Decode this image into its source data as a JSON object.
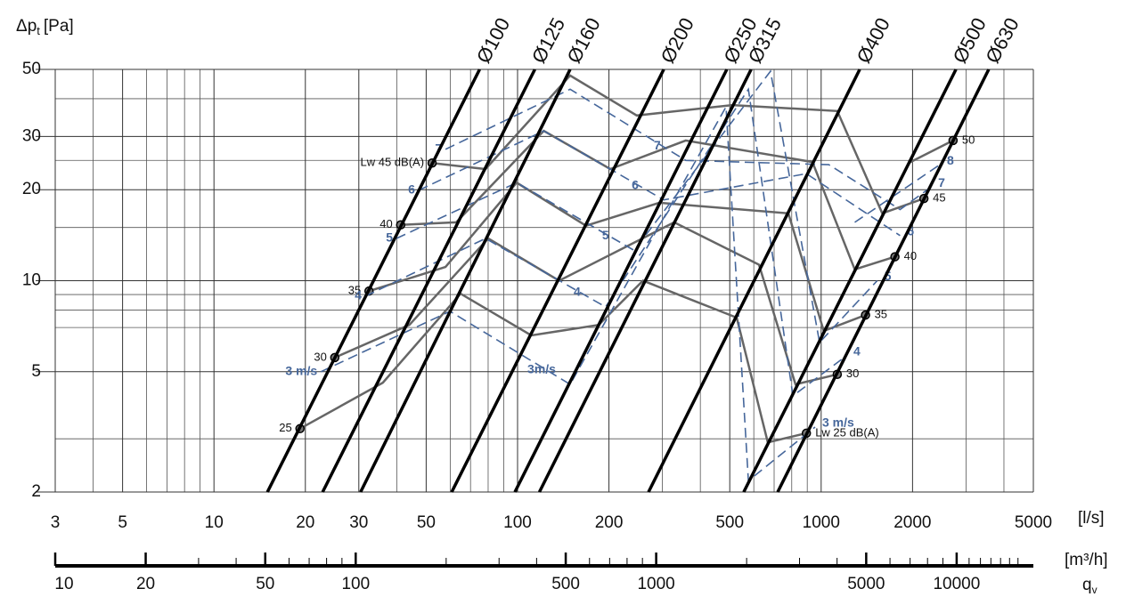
{
  "chart_data": {
    "type": "line",
    "y_label": {
      "main": "Δp",
      "sub": "t",
      "unit": "[Pa]"
    },
    "x_unit": "[l/s]",
    "log": true,
    "grid": true,
    "xlim": [
      3,
      5000
    ],
    "ylim": [
      2,
      50
    ],
    "xticks": [
      3,
      5,
      10,
      20,
      30,
      50,
      100,
      200,
      500,
      1000,
      2000,
      5000
    ],
    "minor_xticks": [
      4,
      6,
      7,
      8,
      9,
      40,
      60,
      70,
      80,
      90,
      300,
      400,
      600,
      700,
      800,
      900,
      3000,
      4000
    ],
    "yticks": [
      2,
      5,
      10,
      20,
      30,
      50
    ],
    "minor_yticks": [
      3,
      7,
      8,
      9,
      15,
      25,
      40
    ],
    "x2": {
      "unit": "[m³/h]",
      "label": {
        "main": "q",
        "sub": "v"
      },
      "lim": [
        10,
        18000
      ],
      "ticks": [
        10,
        20,
        50,
        100,
        500,
        1000,
        5000,
        10000
      ],
      "minor_ticks": [
        30,
        40,
        60,
        70,
        80,
        90,
        200,
        300,
        400,
        600,
        700,
        800,
        900,
        2000,
        3000,
        4000,
        6000,
        7000,
        8000,
        9000,
        11000,
        12000,
        13000,
        14000,
        15000,
        16000
      ]
    },
    "series": [
      {
        "kind": "duct",
        "name": "Ø100",
        "color": "#000000",
        "x": [
          15,
          75
        ],
        "values": [
          2,
          50
        ]
      },
      {
        "kind": "duct",
        "name": "Ø125",
        "color": "#000000",
        "x": [
          22.8,
          114
        ],
        "values": [
          2,
          50
        ]
      },
      {
        "kind": "duct",
        "name": "Ø160",
        "color": "#000000",
        "x": [
          30.4,
          149
        ],
        "values": [
          2,
          50
        ]
      },
      {
        "kind": "duct",
        "name": "Ø200",
        "color": "#000000",
        "x": [
          60.7,
          303
        ],
        "values": [
          2,
          50
        ]
      },
      {
        "kind": "duct",
        "name": "Ø250",
        "color": "#000000",
        "x": [
          98,
          489
        ],
        "values": [
          2,
          50
        ]
      },
      {
        "kind": "duct",
        "name": "Ø315",
        "color": "#000000",
        "x": [
          118,
          588
        ],
        "values": [
          2,
          50
        ]
      },
      {
        "kind": "duct",
        "name": "Ø400",
        "color": "#000000",
        "x": [
          270,
          1340
        ],
        "values": [
          2,
          50
        ]
      },
      {
        "kind": "duct",
        "name": "Ø500",
        "color": "#000000",
        "x": [
          556,
          2780
        ],
        "values": [
          2,
          50
        ]
      },
      {
        "kind": "duct",
        "name": "Ø630",
        "color": "#000000",
        "x": [
          719,
          3565
        ],
        "values": [
          2,
          50
        ]
      },
      {
        "kind": "noise",
        "labels": [
          "25",
          "Lw 25 dB(A)"
        ],
        "color": "#666666",
        "x": [
          19.2,
          36,
          64.9,
          111,
          185,
          259,
          527,
          667,
          894
        ],
        "values": [
          3.24,
          4.6,
          9.06,
          6.59,
          7.14,
          10.0,
          7.55,
          2.92,
          3.13
        ]
      },
      {
        "kind": "noise",
        "labels": [
          "30",
          "30"
        ],
        "color": "#666666",
        "x": [
          25,
          44,
          80,
          137,
          328,
          624,
          823,
          1130
        ],
        "values": [
          5.57,
          7.14,
          13.8,
          10.0,
          15.6,
          11.3,
          4.54,
          4.9
        ]
      },
      {
        "kind": "noise",
        "labels": [
          "35",
          "35"
        ],
        "color": "#666666",
        "x": [
          32.4,
          57.9,
          99.3,
          168,
          293,
          780,
          1020,
          1400
        ],
        "values": [
          9.24,
          11.1,
          21.1,
          15.2,
          18.1,
          16.7,
          6.82,
          7.7
        ]
      },
      {
        "kind": "noise",
        "labels": [
          "40",
          "40"
        ],
        "color": "#666666",
        "x": [
          41.2,
          62.8,
          122,
          202,
          358,
          936,
          1290,
          1750
        ],
        "values": [
          15.3,
          15.6,
          31.3,
          23.4,
          29.1,
          24.7,
          10.9,
          12.0
        ]
      },
      {
        "kind": "noise",
        "labels": [
          "Lw 45 dB(A)",
          "45"
        ],
        "color": "#666666",
        "x": [
          52.3,
          78.4,
          149,
          247,
          510,
          1130,
          1590,
          2180
        ],
        "values": [
          24.5,
          23.4,
          47.7,
          35.2,
          38.1,
          36.4,
          16.7,
          18.7
        ]
      },
      {
        "kind": "noise",
        "labels": [
          "50"
        ],
        "color": "#666666",
        "x": [
          1940,
          2720
        ],
        "values": [
          24.5,
          29.1
        ]
      },
      {
        "kind": "velocity",
        "labels": [
          "3 m/s",
          "3m/s",
          "3 m/s"
        ],
        "color": "#46679b",
        "x": [
          22.5,
          59.9,
          149,
          486,
          576,
          955
        ],
        "values": [
          5.0,
          7.92,
          4.54,
          37.6,
          2.18,
          3.28
        ]
      },
      {
        "kind": "velocity",
        "labels": [
          "4",
          "4",
          "4"
        ],
        "color": "#46679b",
        "x": [
          31.5,
          78.4,
          195,
          576,
          807,
          1210
        ],
        "values": [
          8.88,
          13.8,
          8.19,
          43.0,
          4.16,
          5.64
        ]
      },
      {
        "kind": "velocity",
        "labels": [
          "5",
          "5",
          "5"
        ],
        "color": "#46679b",
        "x": [
          39.9,
          99.3,
          242,
          681,
          988,
          1530
        ],
        "values": [
          13.8,
          21.1,
          12.6,
          49.3,
          6.25,
          10.0
        ]
      },
      {
        "kind": "velocity",
        "labels": [
          "6",
          "6",
          "6"
        ],
        "color": "#46679b",
        "x": [
          47.2,
          122,
          303,
          894,
          1820
        ],
        "values": [
          19.9,
          31.3,
          18.5,
          22.6,
          14.1
        ]
      },
      {
        "kind": "velocity",
        "labels": [
          "7",
          "7",
          "7"
        ],
        "color": "#46679b",
        "x": [
          57.9,
          149,
          358,
          1060,
          1820,
          2300
        ],
        "values": [
          27.2,
          43.0,
          25.0,
          24.2,
          17.2,
          20.4
        ]
      },
      {
        "kind": "velocity",
        "labels": [
          "8"
        ],
        "color": "#46679b",
        "x": [
          1290,
          2460
        ],
        "values": [
          15.6,
          24.2
        ]
      }
    ]
  }
}
